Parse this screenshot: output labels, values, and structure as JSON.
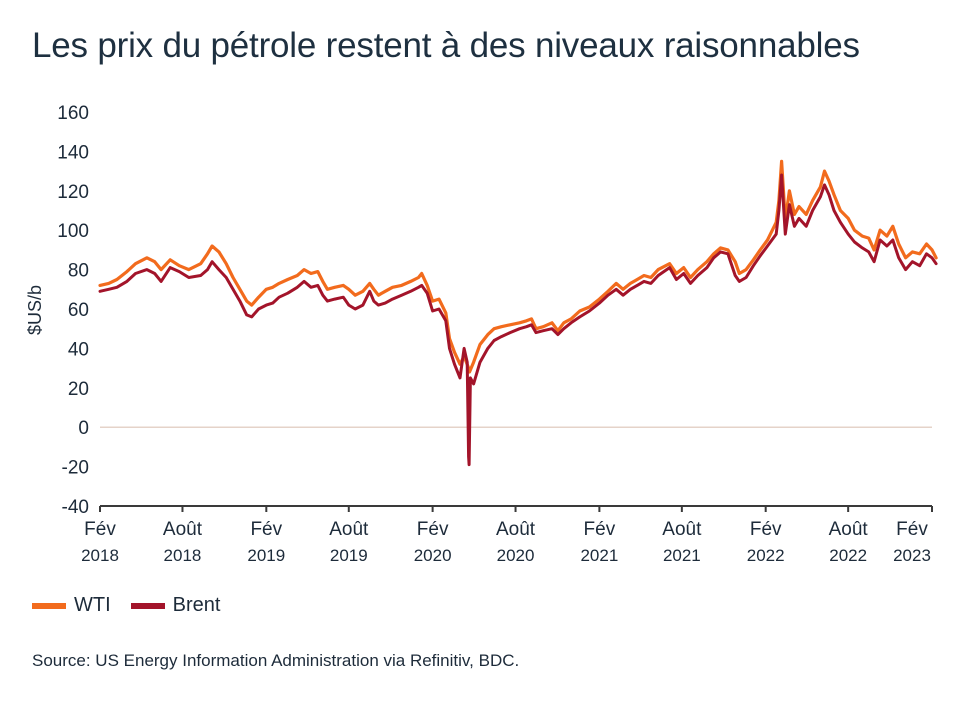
{
  "title": "Les prix du pétrole restent à des niveaux raisonnables",
  "source": "Source: US Energy Information Administration via Refinitiv, BDC.",
  "colors": {
    "wti": "#f26b1d",
    "brent": "#a3142a",
    "axis": "#3a3a3a",
    "zero_line": "#e5d3c9"
  },
  "chart_data": {
    "type": "line",
    "ylabel": "$US/b",
    "ylim": [
      -40,
      160
    ],
    "yticks": [
      160,
      140,
      120,
      100,
      80,
      60,
      40,
      20,
      0,
      -20,
      -40
    ],
    "xlim": [
      "2018-02",
      "2023-02"
    ],
    "xticks": [
      {
        "month": "Fév",
        "year": "2018",
        "date": "2018-02"
      },
      {
        "month": "Août",
        "year": "2018",
        "date": "2018-08"
      },
      {
        "month": "Fév",
        "year": "2019",
        "date": "2019-02"
      },
      {
        "month": "Août",
        "year": "2019",
        "date": "2019-08"
      },
      {
        "month": "Fév",
        "year": "2020",
        "date": "2020-02"
      },
      {
        "month": "Août",
        "year": "2020",
        "date": "2020-08"
      },
      {
        "month": "Fév",
        "year": "2021",
        "date": "2021-02"
      },
      {
        "month": "Août",
        "year": "2021",
        "date": "2021-08"
      },
      {
        "month": "Fév",
        "year": "2022",
        "date": "2022-02"
      },
      {
        "month": "Août",
        "year": "2022",
        "date": "2022-08"
      },
      {
        "month": "Fév",
        "year": "2023",
        "date": "2023-02"
      }
    ],
    "legend_position": "bottom-left",
    "grid": false,
    "series": [
      {
        "name": "WTI",
        "points": [
          [
            "2018-02-01",
            72
          ],
          [
            "2018-02-20",
            73
          ],
          [
            "2018-03-10",
            75
          ],
          [
            "2018-04-01",
            79
          ],
          [
            "2018-04-20",
            83
          ],
          [
            "2018-05-15",
            86
          ],
          [
            "2018-06-01",
            84
          ],
          [
            "2018-06-15",
            80
          ],
          [
            "2018-07-05",
            85
          ],
          [
            "2018-07-25",
            82
          ],
          [
            "2018-08-15",
            80
          ],
          [
            "2018-09-10",
            83
          ],
          [
            "2018-09-25",
            88
          ],
          [
            "2018-10-05",
            92
          ],
          [
            "2018-10-20",
            89
          ],
          [
            "2018-11-05",
            83
          ],
          [
            "2018-11-20",
            76
          ],
          [
            "2018-12-05",
            70
          ],
          [
            "2018-12-20",
            64
          ],
          [
            "2018-12-31",
            62
          ],
          [
            "2019-01-15",
            66
          ],
          [
            "2019-02-01",
            70
          ],
          [
            "2019-02-15",
            71
          ],
          [
            "2019-03-01",
            73
          ],
          [
            "2019-03-20",
            75
          ],
          [
            "2019-04-10",
            77
          ],
          [
            "2019-04-25",
            80
          ],
          [
            "2019-05-10",
            78
          ],
          [
            "2019-05-25",
            79
          ],
          [
            "2019-06-05",
            74
          ],
          [
            "2019-06-15",
            70
          ],
          [
            "2019-07-01",
            71
          ],
          [
            "2019-07-20",
            72
          ],
          [
            "2019-08-01",
            70
          ],
          [
            "2019-08-15",
            67
          ],
          [
            "2019-09-01",
            69
          ],
          [
            "2019-09-16",
            73
          ],
          [
            "2019-09-25",
            70
          ],
          [
            "2019-10-05",
            67
          ],
          [
            "2019-10-20",
            69
          ],
          [
            "2019-11-05",
            71
          ],
          [
            "2019-11-25",
            72
          ],
          [
            "2019-12-15",
            74
          ],
          [
            "2020-01-01",
            76
          ],
          [
            "2020-01-08",
            78
          ],
          [
            "2020-01-20",
            72
          ],
          [
            "2020-02-01",
            64
          ],
          [
            "2020-02-15",
            65
          ],
          [
            "2020-03-01",
            58
          ],
          [
            "2020-03-09",
            45
          ],
          [
            "2020-03-20",
            38
          ],
          [
            "2020-04-01",
            32
          ],
          [
            "2020-04-10",
            36
          ],
          [
            "2020-04-20",
            30
          ],
          [
            "2020-04-22",
            28
          ],
          [
            "2020-05-01",
            33
          ],
          [
            "2020-05-15",
            42
          ],
          [
            "2020-06-01",
            47
          ],
          [
            "2020-06-15",
            50
          ],
          [
            "2020-07-01",
            51
          ],
          [
            "2020-07-20",
            52
          ],
          [
            "2020-08-10",
            53
          ],
          [
            "2020-08-25",
            54
          ],
          [
            "2020-09-05",
            55
          ],
          [
            "2020-09-15",
            50
          ],
          [
            "2020-10-01",
            51
          ],
          [
            "2020-10-20",
            53
          ],
          [
            "2020-11-02",
            49
          ],
          [
            "2020-11-15",
            53
          ],
          [
            "2020-12-01",
            55
          ],
          [
            "2020-12-20",
            59
          ],
          [
            "2021-01-10",
            61
          ],
          [
            "2021-02-01",
            65
          ],
          [
            "2021-02-20",
            69
          ],
          [
            "2021-03-10",
            73
          ],
          [
            "2021-03-25",
            70
          ],
          [
            "2021-04-10",
            73
          ],
          [
            "2021-04-25",
            75
          ],
          [
            "2021-05-10",
            77
          ],
          [
            "2021-05-25",
            76
          ],
          [
            "2021-06-10",
            80
          ],
          [
            "2021-07-05",
            83
          ],
          [
            "2021-07-20",
            78
          ],
          [
            "2021-08-05",
            81
          ],
          [
            "2021-08-20",
            76
          ],
          [
            "2021-09-05",
            80
          ],
          [
            "2021-09-25",
            84
          ],
          [
            "2021-10-10",
            88
          ],
          [
            "2021-10-25",
            91
          ],
          [
            "2021-11-10",
            90
          ],
          [
            "2021-11-26",
            84
          ],
          [
            "2021-12-05",
            78
          ],
          [
            "2021-12-20",
            80
          ],
          [
            "2022-01-05",
            85
          ],
          [
            "2022-01-20",
            90
          ],
          [
            "2022-02-05",
            95
          ],
          [
            "2022-02-24",
            104
          ],
          [
            "2022-03-02",
            115
          ],
          [
            "2022-03-08",
            135
          ],
          [
            "2022-03-16",
            105
          ],
          [
            "2022-03-25",
            120
          ],
          [
            "2022-04-05",
            108
          ],
          [
            "2022-04-15",
            112
          ],
          [
            "2022-05-01",
            108
          ],
          [
            "2022-05-15",
            115
          ],
          [
            "2022-06-01",
            122
          ],
          [
            "2022-06-10",
            130
          ],
          [
            "2022-06-20",
            125
          ],
          [
            "2022-07-01",
            118
          ],
          [
            "2022-07-15",
            110
          ],
          [
            "2022-08-01",
            106
          ],
          [
            "2022-08-15",
            100
          ],
          [
            "2022-09-01",
            97
          ],
          [
            "2022-09-15",
            96
          ],
          [
            "2022-09-27",
            90
          ],
          [
            "2022-10-10",
            100
          ],
          [
            "2022-10-25",
            97
          ],
          [
            "2022-11-07",
            102
          ],
          [
            "2022-11-20",
            93
          ],
          [
            "2022-12-05",
            86
          ],
          [
            "2022-12-20",
            89
          ],
          [
            "2023-01-05",
            88
          ],
          [
            "2023-01-20",
            93
          ],
          [
            "2023-02-01",
            90
          ],
          [
            "2023-02-10",
            86
          ]
        ]
      },
      {
        "name": "Brent",
        "points": [
          [
            "2018-02-01",
            69
          ],
          [
            "2018-02-20",
            70
          ],
          [
            "2018-03-10",
            71
          ],
          [
            "2018-04-01",
            74
          ],
          [
            "2018-04-20",
            78
          ],
          [
            "2018-05-15",
            80
          ],
          [
            "2018-06-01",
            78
          ],
          [
            "2018-06-15",
            74
          ],
          [
            "2018-07-05",
            81
          ],
          [
            "2018-07-25",
            79
          ],
          [
            "2018-08-15",
            76
          ],
          [
            "2018-09-10",
            77
          ],
          [
            "2018-09-25",
            80
          ],
          [
            "2018-10-05",
            84
          ],
          [
            "2018-10-20",
            80
          ],
          [
            "2018-11-05",
            76
          ],
          [
            "2018-11-20",
            70
          ],
          [
            "2018-12-05",
            64
          ],
          [
            "2018-12-20",
            57
          ],
          [
            "2018-12-31",
            56
          ],
          [
            "2019-01-15",
            60
          ],
          [
            "2019-02-01",
            62
          ],
          [
            "2019-02-15",
            63
          ],
          [
            "2019-03-01",
            66
          ],
          [
            "2019-03-20",
            68
          ],
          [
            "2019-04-10",
            71
          ],
          [
            "2019-04-25",
            74
          ],
          [
            "2019-05-10",
            71
          ],
          [
            "2019-05-25",
            72
          ],
          [
            "2019-06-05",
            67
          ],
          [
            "2019-06-15",
            64
          ],
          [
            "2019-07-01",
            65
          ],
          [
            "2019-07-20",
            66
          ],
          [
            "2019-08-01",
            62
          ],
          [
            "2019-08-15",
            60
          ],
          [
            "2019-09-01",
            62
          ],
          [
            "2019-09-16",
            69
          ],
          [
            "2019-09-25",
            64
          ],
          [
            "2019-10-05",
            62
          ],
          [
            "2019-10-20",
            63
          ],
          [
            "2019-11-05",
            65
          ],
          [
            "2019-11-25",
            67
          ],
          [
            "2019-12-15",
            69
          ],
          [
            "2020-01-01",
            71
          ],
          [
            "2020-01-08",
            72
          ],
          [
            "2020-01-20",
            68
          ],
          [
            "2020-02-01",
            59
          ],
          [
            "2020-02-15",
            60
          ],
          [
            "2020-03-01",
            54
          ],
          [
            "2020-03-09",
            40
          ],
          [
            "2020-03-20",
            32
          ],
          [
            "2020-04-01",
            25
          ],
          [
            "2020-04-10",
            40
          ],
          [
            "2020-04-17",
            33
          ],
          [
            "2020-04-20",
            -15
          ],
          [
            "2020-04-21",
            -19
          ],
          [
            "2020-04-24",
            25
          ],
          [
            "2020-05-01",
            22
          ],
          [
            "2020-05-15",
            33
          ],
          [
            "2020-06-01",
            40
          ],
          [
            "2020-06-15",
            44
          ],
          [
            "2020-07-01",
            46
          ],
          [
            "2020-07-20",
            48
          ],
          [
            "2020-08-10",
            50
          ],
          [
            "2020-08-25",
            51
          ],
          [
            "2020-09-05",
            52
          ],
          [
            "2020-09-15",
            48
          ],
          [
            "2020-10-01",
            49
          ],
          [
            "2020-10-20",
            50
          ],
          [
            "2020-11-02",
            47
          ],
          [
            "2020-11-15",
            50
          ],
          [
            "2020-12-01",
            53
          ],
          [
            "2020-12-20",
            56
          ],
          [
            "2021-01-10",
            59
          ],
          [
            "2021-02-01",
            63
          ],
          [
            "2021-02-20",
            67
          ],
          [
            "2021-03-10",
            70
          ],
          [
            "2021-03-25",
            67
          ],
          [
            "2021-04-10",
            70
          ],
          [
            "2021-04-25",
            72
          ],
          [
            "2021-05-10",
            74
          ],
          [
            "2021-05-25",
            73
          ],
          [
            "2021-06-10",
            77
          ],
          [
            "2021-07-05",
            81
          ],
          [
            "2021-07-20",
            75
          ],
          [
            "2021-08-05",
            78
          ],
          [
            "2021-08-20",
            73
          ],
          [
            "2021-09-05",
            77
          ],
          [
            "2021-09-25",
            81
          ],
          [
            "2021-10-10",
            86
          ],
          [
            "2021-10-25",
            89
          ],
          [
            "2021-11-10",
            88
          ],
          [
            "2021-11-26",
            77
          ],
          [
            "2021-12-05",
            74
          ],
          [
            "2021-12-20",
            76
          ],
          [
            "2022-01-05",
            82
          ],
          [
            "2022-01-20",
            87
          ],
          [
            "2022-02-05",
            92
          ],
          [
            "2022-02-24",
            98
          ],
          [
            "2022-03-02",
            110
          ],
          [
            "2022-03-08",
            128
          ],
          [
            "2022-03-16",
            98
          ],
          [
            "2022-03-25",
            113
          ],
          [
            "2022-04-05",
            102
          ],
          [
            "2022-04-15",
            106
          ],
          [
            "2022-05-01",
            102
          ],
          [
            "2022-05-15",
            110
          ],
          [
            "2022-06-01",
            117
          ],
          [
            "2022-06-10",
            123
          ],
          [
            "2022-06-20",
            118
          ],
          [
            "2022-07-01",
            110
          ],
          [
            "2022-07-15",
            104
          ],
          [
            "2022-08-01",
            98
          ],
          [
            "2022-08-15",
            94
          ],
          [
            "2022-09-01",
            91
          ],
          [
            "2022-09-15",
            89
          ],
          [
            "2022-09-27",
            84
          ],
          [
            "2022-10-10",
            95
          ],
          [
            "2022-10-25",
            92
          ],
          [
            "2022-11-07",
            95
          ],
          [
            "2022-11-20",
            86
          ],
          [
            "2022-12-05",
            80
          ],
          [
            "2022-12-20",
            84
          ],
          [
            "2023-01-05",
            82
          ],
          [
            "2023-01-20",
            88
          ],
          [
            "2023-02-01",
            86
          ],
          [
            "2023-02-10",
            83
          ]
        ]
      }
    ]
  }
}
